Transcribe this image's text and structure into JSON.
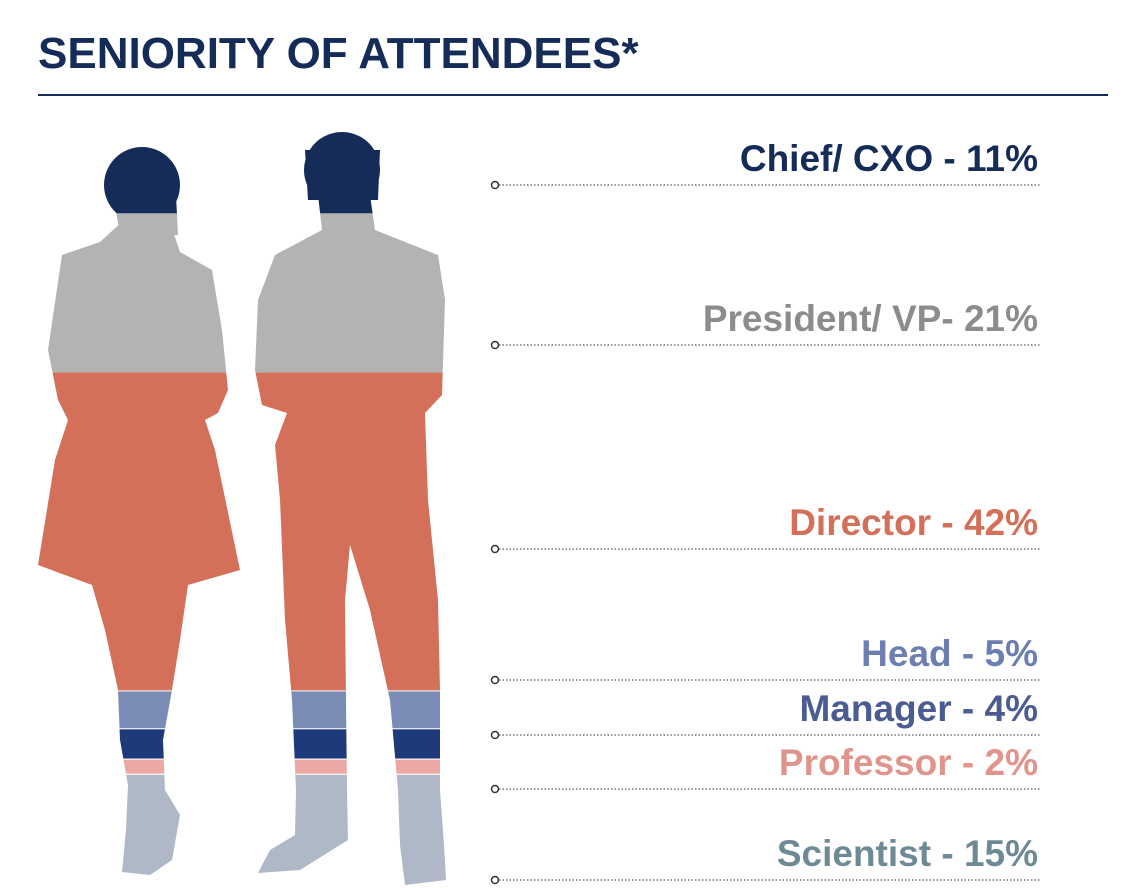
{
  "chart_data": {
    "type": "pictograph",
    "title": "SENIORITY OF ATTENDEES*",
    "labels": [
      "Chief/ CXO - 11%",
      "President/ VP- 21%",
      "Director - 42%",
      "Head - 5%",
      "Manager - 4%",
      "Professor - 2%",
      "Scientist - 15%"
    ],
    "values": [
      11,
      21,
      42,
      5,
      4,
      2,
      15
    ],
    "colors": [
      "#142c57",
      "#b3b3b3",
      "#d4705a",
      "#7a8bb5",
      "#1f3a7a",
      "#eaa8a4",
      "#aeb8c6"
    ],
    "label_colors": [
      "#142c57",
      "#8c8c8c",
      "#d4705a",
      "#6c7fb0",
      "#4b5c93",
      "#e0958c",
      "#6e8a95"
    ]
  }
}
